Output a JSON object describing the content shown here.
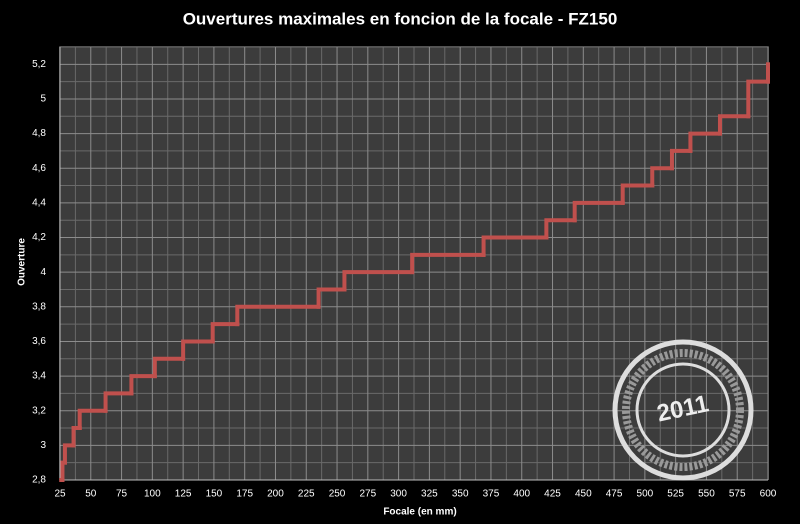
{
  "chart_data": {
    "type": "step",
    "title": "Ouvertures maximales en foncion de la focale - FZ150",
    "x_label": "Focale (en mm)",
    "y_label": "Ouverture",
    "watermark": "2011",
    "color": "#c0504d",
    "grid": true,
    "minor_grid": true,
    "x": [
      26,
      27,
      29,
      36,
      41,
      62,
      83,
      102,
      125,
      149,
      169,
      235,
      256,
      311,
      369,
      420,
      443,
      482,
      506,
      522,
      537,
      561,
      584,
      600
    ],
    "values": [
      2.8,
      2.9,
      3.0,
      3.1,
      3.2,
      3.3,
      3.4,
      3.5,
      3.6,
      3.7,
      3.8,
      3.9,
      4.0,
      4.1,
      4.2,
      4.3,
      4.4,
      4.5,
      4.6,
      4.7,
      4.8,
      4.9,
      5.1,
      5.2
    ],
    "xlim": [
      25,
      600
    ],
    "xticks": [
      25,
      50,
      75,
      100,
      125,
      150,
      175,
      200,
      225,
      250,
      275,
      300,
      325,
      350,
      375,
      400,
      425,
      450,
      475,
      500,
      525,
      550,
      575,
      600
    ],
    "ylim": [
      2.8,
      5.3
    ],
    "yticks": [
      {
        "value": 2.8,
        "label": "2,8"
      },
      3,
      {
        "value": 3.2,
        "label": "3,2"
      },
      {
        "value": 3.4,
        "label": "3,4"
      },
      {
        "value": 3.6,
        "label": "3,6"
      },
      {
        "value": 3.8,
        "label": "3,8"
      },
      4,
      {
        "value": 4.2,
        "label": "4,2"
      },
      {
        "value": 4.4,
        "label": "4,4"
      },
      {
        "value": 4.6,
        "label": "4,6"
      },
      {
        "value": 4.8,
        "label": "4,8"
      },
      5,
      {
        "value": 5.2,
        "label": "5,2"
      }
    ]
  }
}
